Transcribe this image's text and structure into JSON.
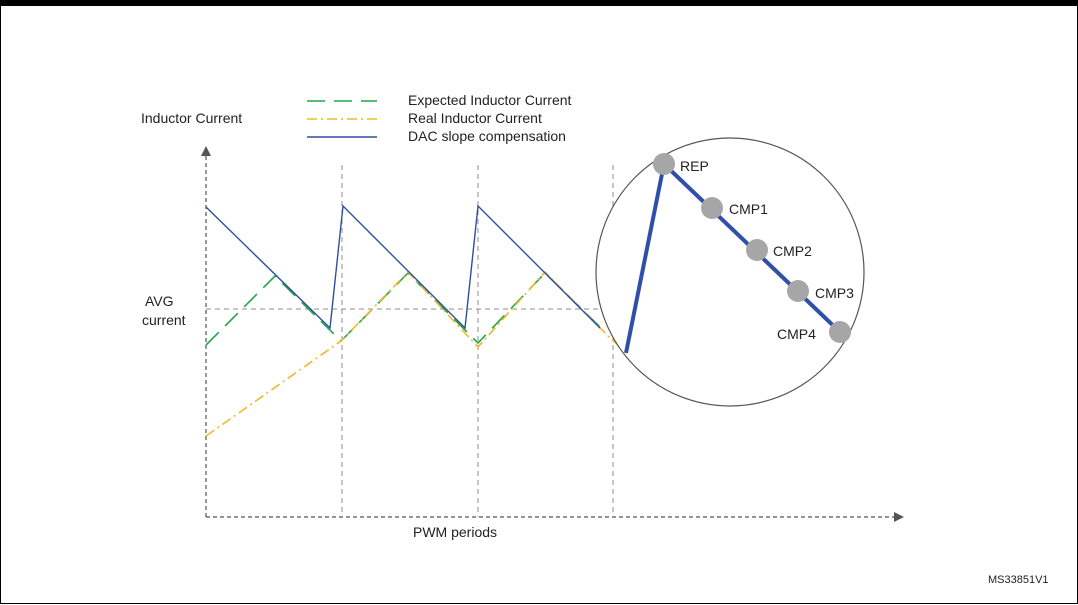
{
  "diagram": {
    "y_axis_label": "Inductor Current",
    "x_axis_label": "PWM periods",
    "avg_label_line1": "AVG",
    "avg_label_line2": "current",
    "figure_id": "MS33851V1",
    "legend": [
      {
        "label": "Expected Inductor Current",
        "color": "#1ea84a",
        "style": "dashed"
      },
      {
        "label": "Real Inductor Current",
        "color": "#f2b82a",
        "style": "dash-dot"
      },
      {
        "label": "DAC slope compensation",
        "color": "#2f4f9e",
        "style": "solid"
      }
    ],
    "zoom_points": [
      "REP",
      "CMP1",
      "CMP2",
      "CMP3",
      "CMP4"
    ],
    "colors": {
      "expected": "#1ea84a",
      "real": "#f2b82a",
      "dac": "#2f4f9e",
      "zoom_line": "#2f4fa8",
      "point": "#a6a6a6",
      "guides": "#8c8c8c"
    }
  }
}
